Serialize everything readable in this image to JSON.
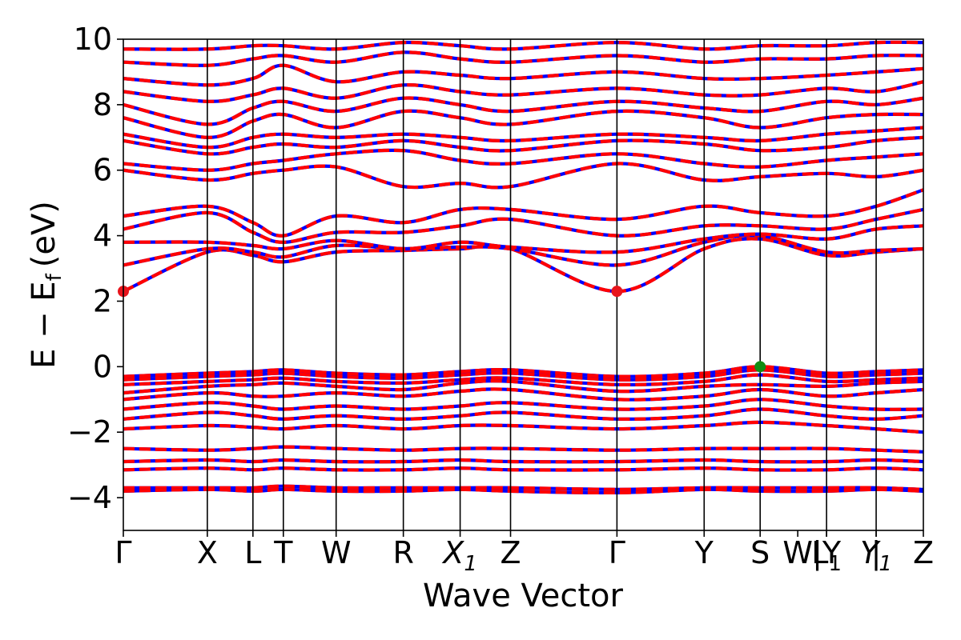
{
  "chart_data": {
    "type": "line",
    "xlabel": "Wave Vector",
    "ylabel_main": "E − E",
    "ylabel_sub": "f",
    "ylabel_unit": "(eV)",
    "ylim": [
      -5,
      10
    ],
    "yticks": [
      -4,
      -2,
      0,
      2,
      4,
      6,
      8,
      10
    ],
    "ytick_labels": [
      "−4",
      "−2",
      "0",
      "2",
      "4",
      "6",
      "8",
      "10"
    ],
    "kpath": [
      {
        "label": "Γ",
        "k": 0.0
      },
      {
        "label": "X",
        "k": 0.105
      },
      {
        "label": "L",
        "k": 0.162
      },
      {
        "label": "T",
        "k": 0.2
      },
      {
        "label": "W",
        "k": 0.266
      },
      {
        "label": "R",
        "k": 0.35
      },
      {
        "label": "X",
        "sub": "1",
        "italic": true,
        "k": 0.421
      },
      {
        "label": "Z",
        "k": 0.484
      },
      {
        "label": "Γ",
        "k": 0.617
      },
      {
        "label": "Y",
        "k": 0.726
      },
      {
        "label": "S",
        "k": 0.796
      },
      {
        "label": "W",
        "k": 0.843
      },
      {
        "label": "|Y",
        "k": 0.879
      },
      {
        "label": "L",
        "sub": "1",
        "k": 0.879
      },
      {
        "label": "|",
        "k": 0.941
      },
      {
        "label": "Y",
        "sub": "1",
        "italic": true,
        "k": 0.941
      },
      {
        "label": "Z",
        "k": 1.0
      }
    ],
    "vertical_lines_k": [
      0.105,
      0.162,
      0.2,
      0.266,
      0.35,
      0.421,
      0.484,
      0.617,
      0.726,
      0.796,
      0.879,
      0.941
    ],
    "band_colors": {
      "spin_up": "#ff0000",
      "spin_down": "#0000ff"
    },
    "cbm_marker": {
      "points": [
        {
          "k": 0.0,
          "E": 2.3
        },
        {
          "k": 0.617,
          "E": 2.3
        }
      ],
      "color": "#e8141c"
    },
    "vbm_marker": {
      "points": [
        {
          "k": 0.796,
          "E": 0.0
        }
      ],
      "color": "#138c13"
    },
    "conduction_bands": [
      {
        "k": [
          0,
          0.105,
          0.162,
          0.2,
          0.266,
          0.35,
          0.421,
          0.484,
          0.617,
          0.726,
          0.796,
          0.879,
          0.941,
          1.0
        ],
        "E": [
          2.3,
          3.5,
          3.4,
          3.2,
          3.5,
          3.55,
          3.6,
          3.6,
          2.3,
          3.6,
          3.9,
          3.4,
          3.5,
          3.6
        ]
      },
      {
        "k": [
          0,
          0.105,
          0.162,
          0.2,
          0.266,
          0.35,
          0.421,
          0.484,
          0.617,
          0.726,
          0.796,
          0.879,
          0.941,
          1.0
        ],
        "E": [
          3.1,
          3.6,
          3.5,
          3.35,
          3.7,
          3.6,
          3.65,
          3.6,
          3.1,
          3.8,
          4.0,
          3.5,
          3.55,
          3.6
        ]
      },
      {
        "k": [
          0,
          0.105,
          0.162,
          0.2,
          0.266,
          0.35,
          0.421,
          0.484,
          0.617,
          0.726,
          0.796,
          0.879,
          0.941,
          1.0
        ],
        "E": [
          3.8,
          3.8,
          3.7,
          3.6,
          3.85,
          3.6,
          3.8,
          3.65,
          3.5,
          3.9,
          4.05,
          3.9,
          4.2,
          4.3
        ]
      },
      {
        "k": [
          0,
          0.105,
          0.162,
          0.2,
          0.266,
          0.35,
          0.421,
          0.484,
          0.617,
          0.726,
          0.796,
          0.879,
          0.941,
          1.0
        ],
        "E": [
          4.2,
          4.7,
          4.1,
          3.8,
          4.1,
          4.1,
          4.3,
          4.5,
          4.0,
          4.3,
          4.3,
          4.2,
          4.5,
          4.8
        ]
      },
      {
        "k": [
          0,
          0.105,
          0.162,
          0.2,
          0.266,
          0.35,
          0.421,
          0.484,
          0.617,
          0.726,
          0.796,
          0.879,
          0.941,
          1.0
        ],
        "E": [
          4.6,
          4.9,
          4.4,
          4.0,
          4.6,
          4.4,
          4.8,
          4.8,
          4.5,
          4.9,
          4.7,
          4.6,
          4.9,
          5.4
        ]
      },
      {
        "k": [
          0,
          0.105,
          0.162,
          0.2,
          0.266,
          0.35,
          0.421,
          0.484,
          0.617,
          0.726,
          0.796,
          0.879,
          0.941,
          1.0
        ],
        "E": [
          6.0,
          5.7,
          5.9,
          6.0,
          6.1,
          5.5,
          5.6,
          5.5,
          6.2,
          5.7,
          5.8,
          5.9,
          5.8,
          6.0
        ]
      },
      {
        "k": [
          0,
          0.105,
          0.162,
          0.2,
          0.266,
          0.35,
          0.421,
          0.484,
          0.617,
          0.726,
          0.796,
          0.879,
          0.941,
          1.0
        ],
        "E": [
          6.2,
          6.0,
          6.2,
          6.3,
          6.5,
          6.6,
          6.3,
          6.2,
          6.5,
          6.2,
          6.1,
          6.3,
          6.4,
          6.5
        ]
      },
      {
        "k": [
          0,
          0.105,
          0.162,
          0.2,
          0.266,
          0.35,
          0.421,
          0.484,
          0.617,
          0.726,
          0.796,
          0.879,
          0.941,
          1.0
        ],
        "E": [
          6.9,
          6.5,
          6.7,
          6.8,
          6.7,
          6.9,
          6.7,
          6.6,
          6.9,
          6.8,
          6.6,
          6.7,
          6.9,
          7.0
        ]
      },
      {
        "k": [
          0,
          0.105,
          0.162,
          0.2,
          0.266,
          0.35,
          0.421,
          0.484,
          0.617,
          0.726,
          0.796,
          0.879,
          0.941,
          1.0
        ],
        "E": [
          7.1,
          6.7,
          7.0,
          7.1,
          7.0,
          7.1,
          7.0,
          6.9,
          7.1,
          7.0,
          6.9,
          7.1,
          7.2,
          7.3
        ]
      },
      {
        "k": [
          0,
          0.105,
          0.162,
          0.2,
          0.266,
          0.35,
          0.421,
          0.484,
          0.617,
          0.726,
          0.796,
          0.879,
          0.941,
          1.0
        ],
        "E": [
          7.6,
          7.0,
          7.5,
          7.7,
          7.3,
          7.8,
          7.6,
          7.4,
          7.8,
          7.6,
          7.3,
          7.6,
          7.7,
          7.7
        ]
      },
      {
        "k": [
          0,
          0.105,
          0.162,
          0.2,
          0.266,
          0.35,
          0.421,
          0.484,
          0.617,
          0.726,
          0.796,
          0.879,
          0.941,
          1.0
        ],
        "E": [
          8.0,
          7.4,
          7.9,
          8.1,
          7.8,
          8.2,
          8.0,
          7.8,
          8.1,
          7.9,
          7.8,
          8.1,
          8.0,
          8.2
        ]
      },
      {
        "k": [
          0,
          0.105,
          0.162,
          0.2,
          0.266,
          0.35,
          0.421,
          0.484,
          0.617,
          0.726,
          0.796,
          0.879,
          0.941,
          1.0
        ],
        "E": [
          8.4,
          8.1,
          8.3,
          8.5,
          8.2,
          8.6,
          8.4,
          8.3,
          8.5,
          8.3,
          8.3,
          8.5,
          8.4,
          8.7
        ]
      },
      {
        "k": [
          0,
          0.105,
          0.162,
          0.2,
          0.266,
          0.35,
          0.421,
          0.484,
          0.617,
          0.726,
          0.796,
          0.879,
          0.941,
          1.0
        ],
        "E": [
          8.8,
          8.6,
          8.8,
          9.2,
          8.7,
          9.0,
          8.9,
          8.8,
          9.0,
          8.8,
          8.8,
          8.9,
          9.0,
          9.1
        ]
      },
      {
        "k": [
          0,
          0.105,
          0.162,
          0.2,
          0.266,
          0.35,
          0.421,
          0.484,
          0.617,
          0.726,
          0.796,
          0.879,
          0.941,
          1.0
        ],
        "E": [
          9.3,
          9.2,
          9.4,
          9.5,
          9.3,
          9.6,
          9.4,
          9.3,
          9.5,
          9.3,
          9.4,
          9.4,
          9.5,
          9.5
        ]
      },
      {
        "k": [
          0,
          0.105,
          0.162,
          0.2,
          0.266,
          0.35,
          0.421,
          0.484,
          0.617,
          0.726,
          0.796,
          0.879,
          0.941,
          1.0
        ],
        "E": [
          9.7,
          9.7,
          9.8,
          9.8,
          9.7,
          9.9,
          9.8,
          9.7,
          9.9,
          9.7,
          9.8,
          9.8,
          9.9,
          9.9
        ]
      }
    ],
    "valence_bands": [
      {
        "k": [
          0,
          0.105,
          0.162,
          0.2,
          0.266,
          0.35,
          0.421,
          0.484,
          0.617,
          0.726,
          0.796,
          0.879,
          0.941,
          1.0
        ],
        "E": [
          -0.3,
          -0.2,
          -0.15,
          -0.1,
          -0.2,
          -0.25,
          -0.15,
          -0.1,
          -0.3,
          -0.2,
          0.0,
          -0.2,
          -0.15,
          -0.1
        ]
      },
      {
        "k": [
          0,
          0.105,
          0.162,
          0.2,
          0.266,
          0.35,
          0.421,
          0.484,
          0.617,
          0.726,
          0.796,
          0.879,
          0.941,
          1.0
        ],
        "E": [
          -0.4,
          -0.3,
          -0.25,
          -0.2,
          -0.3,
          -0.35,
          -0.25,
          -0.2,
          -0.4,
          -0.3,
          -0.1,
          -0.3,
          -0.25,
          -0.2
        ]
      },
      {
        "k": [
          0,
          0.105,
          0.162,
          0.2,
          0.266,
          0.35,
          0.421,
          0.484,
          0.617,
          0.726,
          0.796,
          0.879,
          0.941,
          1.0
        ],
        "E": [
          -0.55,
          -0.45,
          -0.4,
          -0.35,
          -0.45,
          -0.5,
          -0.4,
          -0.35,
          -0.55,
          -0.45,
          -0.25,
          -0.45,
          -0.4,
          -0.35
        ]
      },
      {
        "k": [
          0,
          0.105,
          0.162,
          0.2,
          0.266,
          0.35,
          0.421,
          0.484,
          0.617,
          0.726,
          0.796,
          0.879,
          0.941,
          1.0
        ],
        "E": [
          -0.8,
          -0.6,
          -0.55,
          -0.5,
          -0.6,
          -0.7,
          -0.5,
          -0.45,
          -0.75,
          -0.6,
          -0.55,
          -0.6,
          -0.5,
          -0.45
        ]
      },
      {
        "k": [
          0,
          0.105,
          0.162,
          0.2,
          0.266,
          0.35,
          0.421,
          0.484,
          0.617,
          0.726,
          0.796,
          0.879,
          0.941,
          1.0
        ],
        "E": [
          -1.0,
          -0.8,
          -0.9,
          -0.9,
          -0.8,
          -0.9,
          -0.75,
          -0.7,
          -1.0,
          -0.9,
          -0.7,
          -0.9,
          -0.8,
          -0.7
        ]
      },
      {
        "k": [
          0,
          0.105,
          0.162,
          0.2,
          0.266,
          0.35,
          0.421,
          0.484,
          0.617,
          0.726,
          0.796,
          0.879,
          0.941,
          1.0
        ],
        "E": [
          -1.3,
          -1.1,
          -1.2,
          -1.3,
          -1.2,
          -1.3,
          -1.2,
          -1.1,
          -1.3,
          -1.2,
          -1.0,
          -1.2,
          -1.3,
          -1.3
        ]
      },
      {
        "k": [
          0,
          0.105,
          0.162,
          0.2,
          0.266,
          0.35,
          0.421,
          0.484,
          0.617,
          0.726,
          0.796,
          0.879,
          0.941,
          1.0
        ],
        "E": [
          -1.6,
          -1.4,
          -1.5,
          -1.6,
          -1.5,
          -1.6,
          -1.5,
          -1.4,
          -1.6,
          -1.5,
          -1.3,
          -1.5,
          -1.6,
          -1.5
        ]
      },
      {
        "k": [
          0,
          0.105,
          0.162,
          0.2,
          0.266,
          0.35,
          0.421,
          0.484,
          0.617,
          0.726,
          0.796,
          0.879,
          0.941,
          1.0
        ],
        "E": [
          -1.9,
          -1.8,
          -1.85,
          -1.9,
          -1.8,
          -1.9,
          -1.8,
          -1.8,
          -1.9,
          -1.8,
          -1.7,
          -1.8,
          -1.9,
          -2.0
        ]
      },
      {
        "k": [
          0,
          0.105,
          0.162,
          0.2,
          0.266,
          0.35,
          0.421,
          0.484,
          0.617,
          0.726,
          0.796,
          0.879,
          0.941,
          1.0
        ],
        "E": [
          -2.5,
          -2.55,
          -2.5,
          -2.45,
          -2.5,
          -2.55,
          -2.5,
          -2.5,
          -2.55,
          -2.5,
          -2.5,
          -2.5,
          -2.55,
          -2.6
        ]
      },
      {
        "k": [
          0,
          0.105,
          0.162,
          0.2,
          0.266,
          0.35,
          0.421,
          0.484,
          0.617,
          0.726,
          0.796,
          0.879,
          0.941,
          1.0
        ],
        "E": [
          -2.9,
          -2.85,
          -2.9,
          -2.85,
          -2.9,
          -2.9,
          -2.85,
          -2.9,
          -2.9,
          -2.85,
          -2.9,
          -2.9,
          -2.85,
          -2.9
        ]
      },
      {
        "k": [
          0,
          0.105,
          0.162,
          0.2,
          0.266,
          0.35,
          0.421,
          0.484,
          0.617,
          0.726,
          0.796,
          0.879,
          0.941,
          1.0
        ],
        "E": [
          -3.15,
          -3.1,
          -3.15,
          -3.1,
          -3.15,
          -3.15,
          -3.1,
          -3.15,
          -3.15,
          -3.1,
          -3.15,
          -3.15,
          -3.1,
          -3.15
        ]
      },
      {
        "k": [
          0,
          0.105,
          0.162,
          0.2,
          0.266,
          0.35,
          0.421,
          0.484,
          0.617,
          0.726,
          0.796,
          0.879,
          0.941,
          1.0
        ],
        "E": [
          -3.7,
          -3.7,
          -3.7,
          -3.65,
          -3.7,
          -3.7,
          -3.7,
          -3.7,
          -3.75,
          -3.7,
          -3.7,
          -3.7,
          -3.7,
          -3.75
        ]
      },
      {
        "k": [
          0,
          0.105,
          0.162,
          0.2,
          0.266,
          0.35,
          0.421,
          0.484,
          0.617,
          0.726,
          0.796,
          0.879,
          0.941,
          1.0
        ],
        "E": [
          -3.8,
          -3.75,
          -3.8,
          -3.75,
          -3.8,
          -3.8,
          -3.75,
          -3.8,
          -3.85,
          -3.75,
          -3.8,
          -3.8,
          -3.75,
          -3.8
        ]
      }
    ]
  }
}
